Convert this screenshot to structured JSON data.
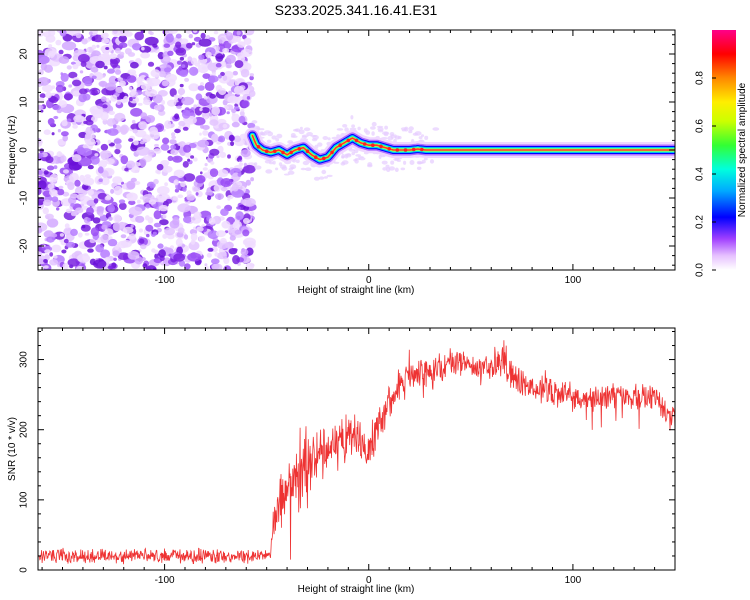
{
  "title": "S233.2025.341.16.41.E31",
  "colors": {
    "snr_line": "#ee3333",
    "speckle": "#6a1fd6",
    "colormap": [
      "#ffffff",
      "#e9c8ff",
      "#a040ff",
      "#0000ff",
      "#00b0ff",
      "#00ffcc",
      "#33ff33",
      "#ccff00",
      "#ffff00",
      "#ff9900",
      "#ff0000",
      "#ff0088"
    ]
  },
  "chart_data": [
    {
      "type": "heatmap",
      "name": "spectrogram",
      "xlabel": "Height of straight line (km)",
      "ylabel": "Frequency (Hz)",
      "xlim": [
        -162,
        150
      ],
      "ylim": [
        -25,
        25
      ],
      "xticks": [
        -100,
        0,
        100
      ],
      "xtick_labels": [
        "-100",
        "0",
        "100"
      ],
      "yticks": [
        -20,
        -10,
        0,
        10,
        20
      ],
      "ytick_labels": [
        "-20",
        "-10",
        "0",
        "10",
        "20"
      ],
      "noise_region_x": [
        -162,
        -57
      ],
      "ridge": {
        "x": [
          -57,
          -55,
          -52,
          -48,
          -44,
          -40,
          -36,
          -32,
          -28,
          -24,
          -20,
          -16,
          -12,
          -8,
          -4,
          0,
          4,
          8,
          12,
          16,
          20,
          24,
          28,
          32,
          150
        ],
        "freq": [
          3,
          1,
          0,
          -0.5,
          0,
          -1,
          0,
          0.5,
          -1,
          -2,
          -1.5,
          0.5,
          1.5,
          2.5,
          1.5,
          1,
          1,
          0.5,
          0,
          0,
          0,
          0.2,
          0,
          0,
          0
        ]
      },
      "colorbar": {
        "label": "Normalized spectral amplitude",
        "range": [
          0,
          1
        ],
        "ticks": [
          "0.0",
          "0.2",
          "0.4",
          "0.6",
          "0.8"
        ]
      }
    },
    {
      "type": "line",
      "name": "snr",
      "xlabel": "Height of straight line (km)",
      "ylabel": "SNR (10 * v/v)",
      "xlim": [
        -162,
        150
      ],
      "ylim": [
        0,
        345
      ],
      "xticks": [
        -100,
        0,
        100
      ],
      "xtick_labels": [
        "-100",
        "0",
        "100"
      ],
      "yticks": [
        0,
        100,
        200,
        300
      ],
      "ytick_labels": [
        "0",
        "100",
        "200",
        "300"
      ],
      "trend": {
        "x": [
          -162,
          -140,
          -100,
          -60,
          -48,
          -47,
          -44,
          -40,
          -38,
          -30,
          -20,
          -10,
          -5,
          0,
          5,
          10,
          15,
          20,
          25,
          30,
          40,
          50,
          60,
          65,
          70,
          80,
          90,
          100,
          110,
          120,
          130,
          140,
          145,
          150
        ],
        "snr": [
          20,
          20,
          20,
          20,
          22,
          70,
          100,
          120,
          110,
          150,
          175,
          190,
          190,
          170,
          210,
          240,
          260,
          270,
          285,
          280,
          295,
          290,
          285,
          300,
          275,
          260,
          255,
          245,
          240,
          250,
          245,
          250,
          225,
          215
        ]
      },
      "noise_amplitude": {
        "x": [
          -162,
          -48,
          -46,
          -30,
          -20,
          0,
          20,
          60,
          100,
          150
        ],
        "amp": [
          12,
          12,
          55,
          50,
          40,
          35,
          28,
          25,
          22,
          22
        ]
      }
    }
  ]
}
